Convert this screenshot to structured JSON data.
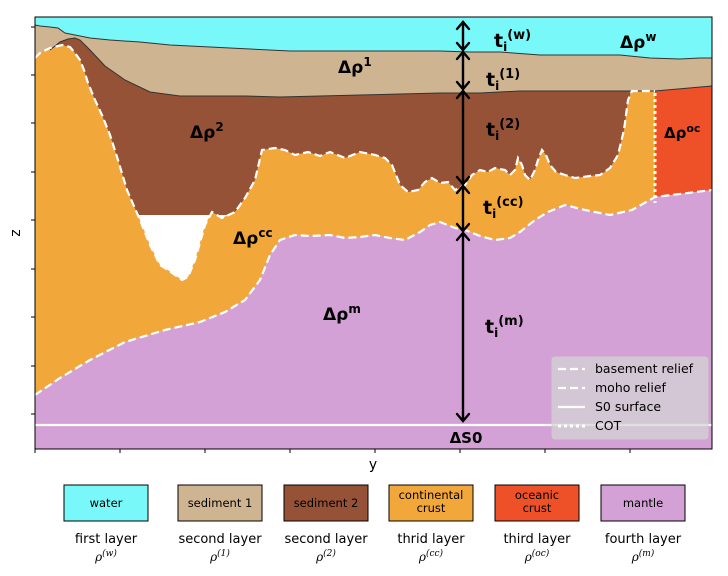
{
  "axes": {
    "xlabel": "y",
    "ylabel": "z"
  },
  "colors": {
    "water": "#78f8f8",
    "sediment1": "#cfb491",
    "sediment2": "#955236",
    "continental_crust": "#f2a73b",
    "oceanic_crust": "#ee5128",
    "mantle": "#d3a1d6"
  },
  "region_labels": {
    "water": {
      "base": "Δρ",
      "sup": "w"
    },
    "sediment1": {
      "base": "Δρ",
      "sup": "1"
    },
    "sediment2": {
      "base": "Δρ",
      "sup": "2"
    },
    "continental_crust": {
      "base": "Δρ",
      "sup": "cc"
    },
    "oceanic_crust": {
      "base": "Δρ",
      "sup": "oc"
    },
    "mantle": {
      "base": "Δρ",
      "sup": "m"
    }
  },
  "thickness_labels": [
    {
      "base": "t",
      "sub": "i",
      "sup": "(w)"
    },
    {
      "base": "t",
      "sub": "i",
      "sup": "(1)"
    },
    {
      "base": "t",
      "sub": "i",
      "sup": "(2)"
    },
    {
      "base": "t",
      "sub": "i",
      "sup": "(cc)"
    },
    {
      "base": "t",
      "sub": "i",
      "sup": "(m)"
    }
  ],
  "reference_label": "ΔS0",
  "legend": [
    {
      "label": "basement relief",
      "style": "dashed"
    },
    {
      "label": "moho relief",
      "style": "dashed"
    },
    {
      "label": "S0 surface",
      "style": "solid"
    },
    {
      "label": "COT",
      "style": "dotted"
    }
  ],
  "key": [
    {
      "name": [
        "water"
      ],
      "caption": "first layer",
      "rho": "(w)",
      "color": "#78f8f8",
      "text_color": "#000000"
    },
    {
      "name": [
        "sediment 1"
      ],
      "caption": "second layer",
      "rho": "(1)",
      "color": "#cfb491",
      "text_color": "#000000"
    },
    {
      "name": [
        "sediment 2"
      ],
      "caption": "second layer",
      "rho": "(2)",
      "color": "#955236",
      "text_color": "#000000"
    },
    {
      "name": [
        "continental",
        "crust"
      ],
      "caption": "thrid layer",
      "rho": "(cc)",
      "color": "#f2a73b",
      "text_color": "#000000"
    },
    {
      "name": [
        "oceanic",
        "crust"
      ],
      "caption": "third layer",
      "rho": "(oc)",
      "color": "#ee5128",
      "text_color": "#000000"
    },
    {
      "name": [
        "mantle"
      ],
      "caption": "fourth layer",
      "rho": "(m)",
      "color": "#d3a1d6",
      "text_color": "#000000"
    }
  ]
}
